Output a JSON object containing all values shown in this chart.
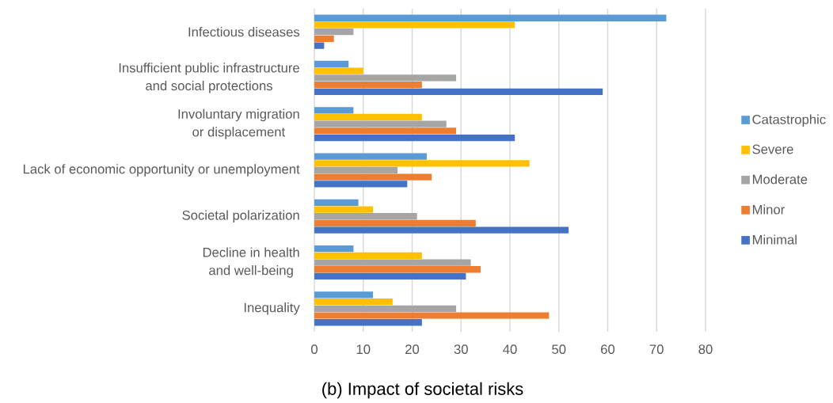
{
  "chart_data": {
    "type": "bar",
    "orientation": "horizontal",
    "title": "(b) Impact of societal risks",
    "categories": [
      "Infectious diseases",
      "Insufficient public infrastructure and social protections",
      "Involuntary migration or displacement",
      "Lack of economic opportunity or unemployment",
      "Societal polarization",
      "Decline in health and well-being",
      "Inequality"
    ],
    "series": [
      {
        "name": "Catastrophic",
        "color": "#5b9bd5",
        "values": [
          72,
          7,
          8,
          23,
          9,
          8,
          12
        ]
      },
      {
        "name": "Severe",
        "color": "#ffc000",
        "values": [
          41,
          10,
          22,
          44,
          12,
          22,
          16
        ]
      },
      {
        "name": "Moderate",
        "color": "#a5a5a5",
        "values": [
          8,
          29,
          27,
          17,
          21,
          32,
          29
        ]
      },
      {
        "name": "Minor",
        "color": "#ed7d31",
        "values": [
          4,
          22,
          29,
          24,
          33,
          34,
          48
        ]
      },
      {
        "name": "Minimal",
        "color": "#4472c4",
        "values": [
          2,
          59,
          41,
          19,
          52,
          31,
          22
        ]
      }
    ],
    "xlim": [
      0,
      80
    ],
    "xticks": [
      0,
      10,
      20,
      30,
      40,
      50,
      60,
      70,
      80
    ],
    "grid": "x",
    "legend": "right"
  }
}
